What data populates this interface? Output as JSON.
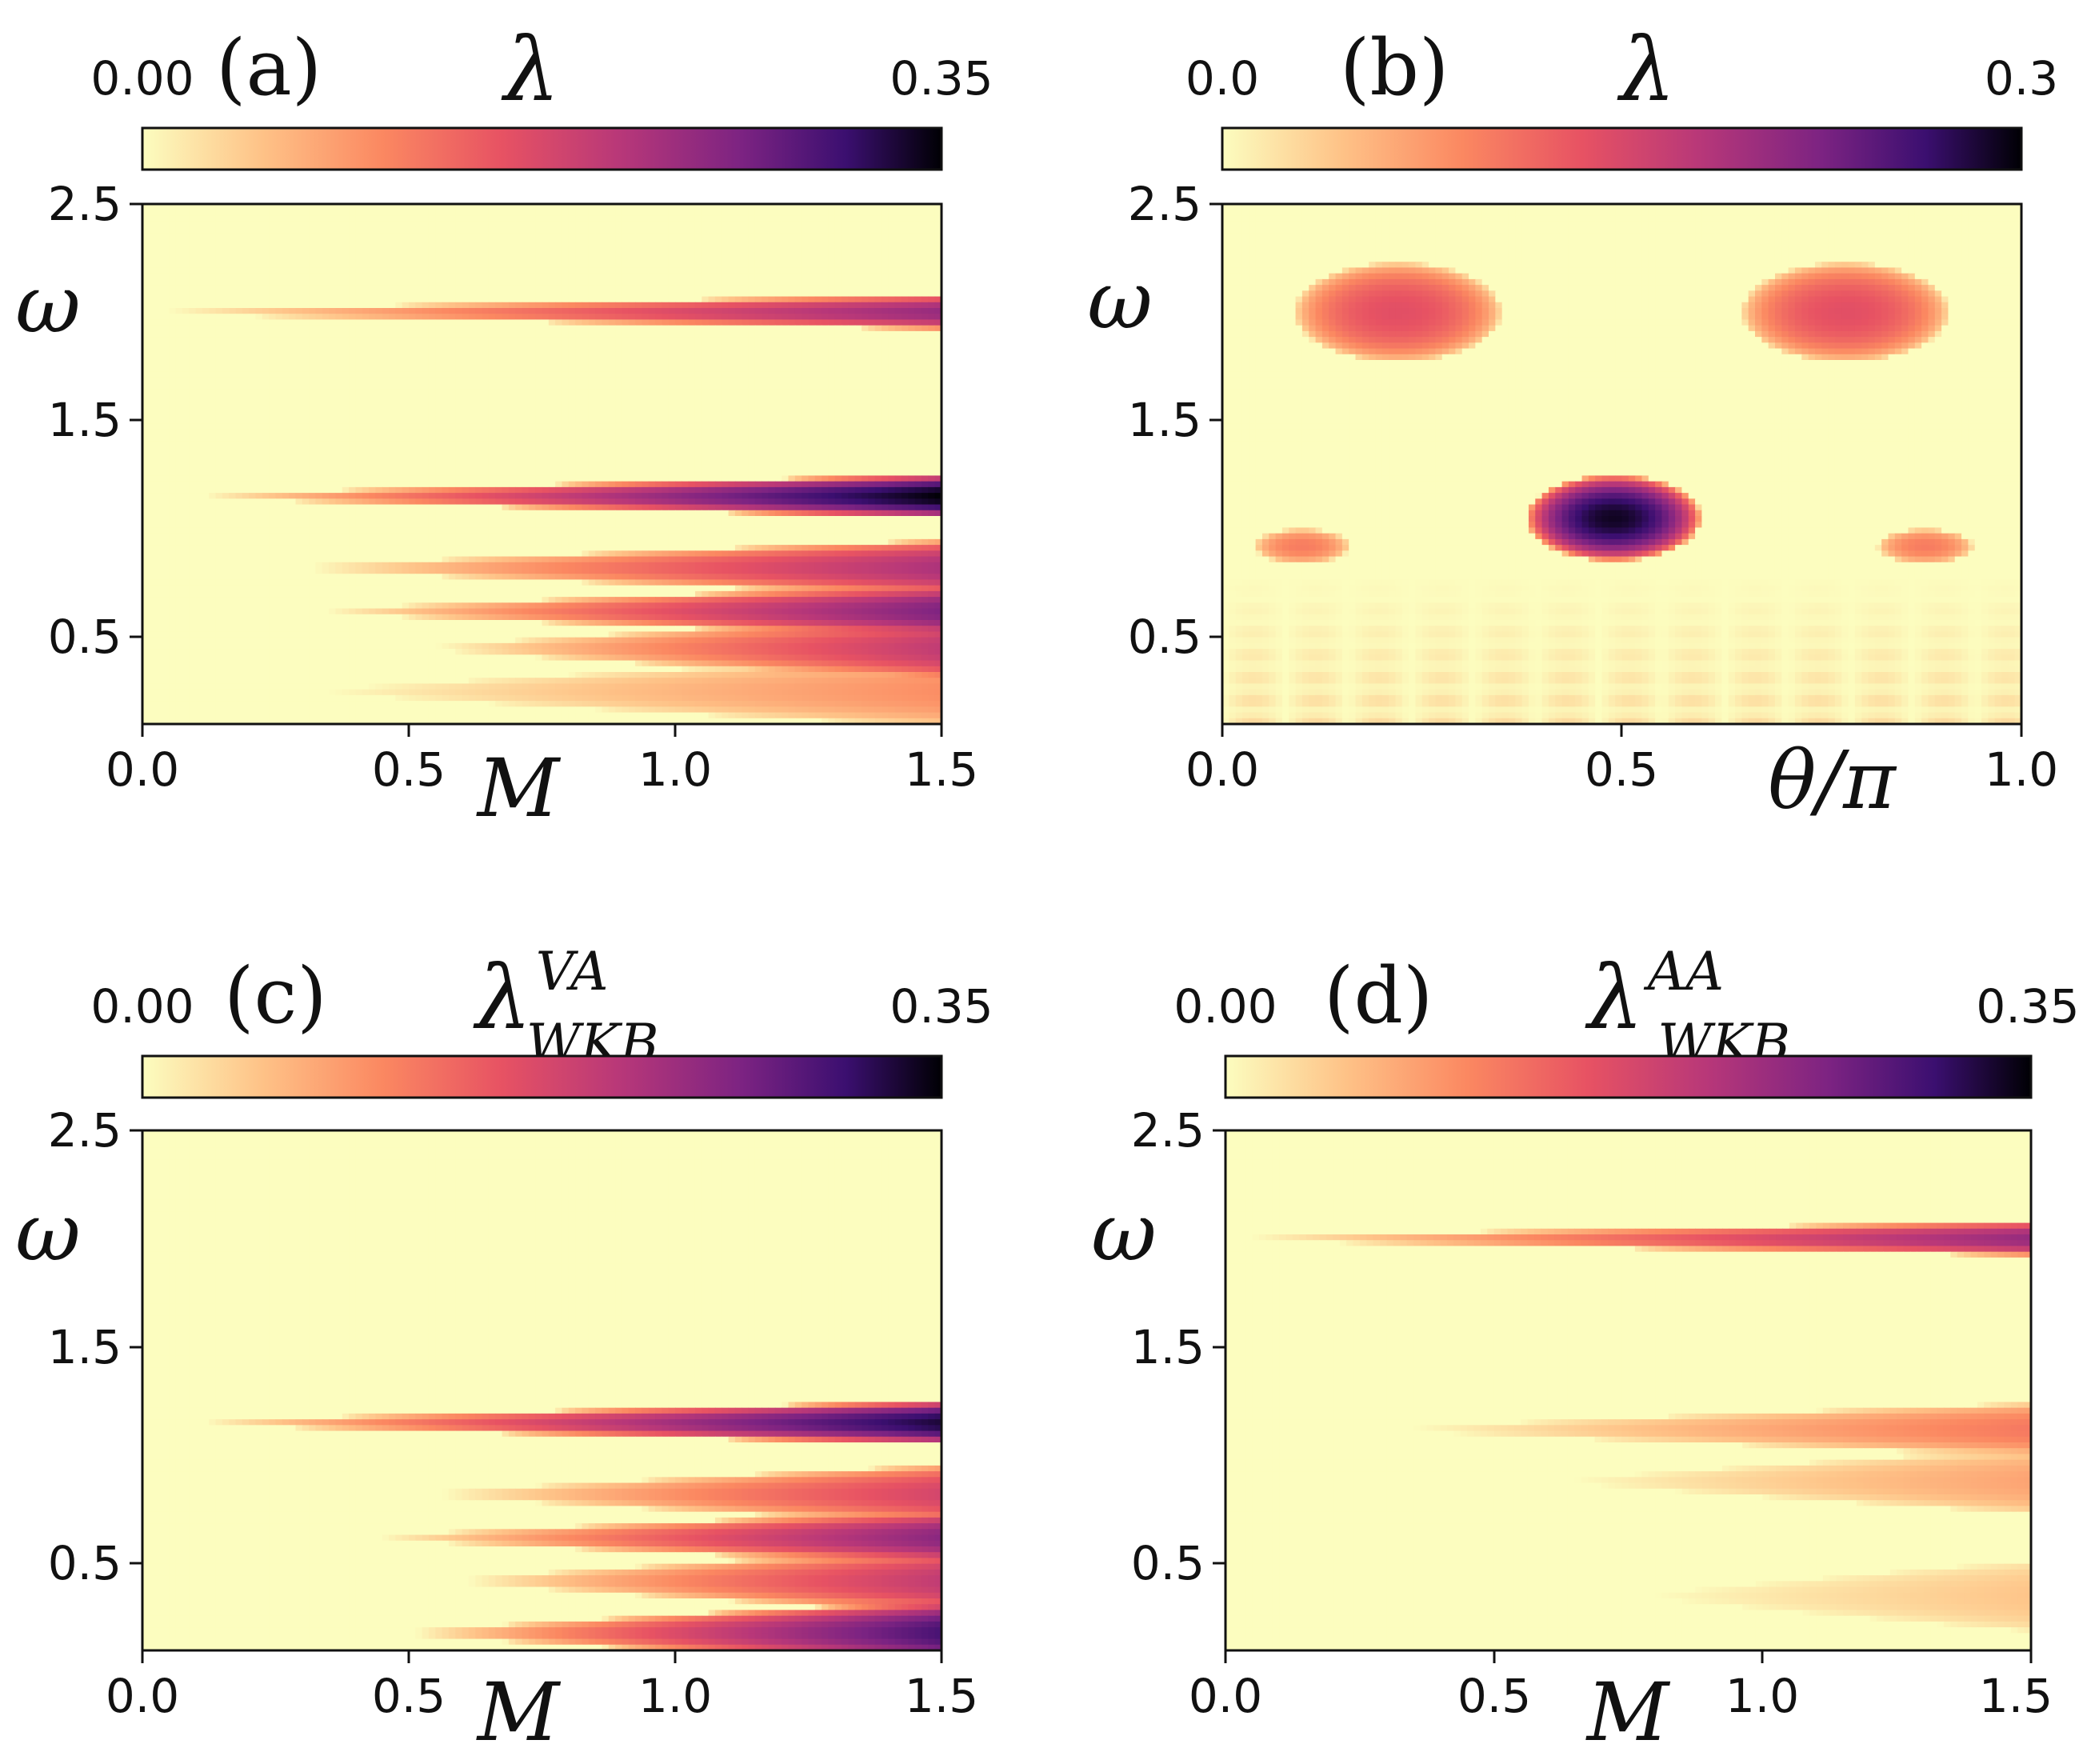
{
  "chart_data": [
    {
      "type": "heatmap",
      "panel_label": "(a)",
      "colorbar": {
        "label": "λ",
        "label_sup": "",
        "label_sub": "",
        "min_label": "0.00",
        "max_label": "0.35",
        "range": [
          0,
          0.35
        ]
      },
      "xlabel": "M",
      "ylabel": "ω",
      "xlim": [
        0,
        1.5
      ],
      "ylim": [
        0.1,
        2.5
      ],
      "xticks": [
        "0.0",
        "0.5",
        "1.0",
        "1.5"
      ],
      "yticks": [
        "2.5",
        "1.5",
        "0.5"
      ],
      "tongues": [
        {
          "center": 2.0,
          "start": 0.05,
          "peak": 0.24,
          "growth": 1.0
        },
        {
          "center": 1.15,
          "start": 0.12,
          "peak": 0.35,
          "growth": 1.3
        },
        {
          "center": 0.82,
          "start": 0.3,
          "peak": 0.22,
          "growth": 1.7
        },
        {
          "center": 0.62,
          "start": 0.35,
          "peak": 0.26,
          "growth": 1.6
        },
        {
          "center": 0.45,
          "start": 0.55,
          "peak": 0.2,
          "growth": 2.0
        },
        {
          "center": 0.25,
          "start": 0.35,
          "peak": 0.1,
          "growth": 2.2
        }
      ]
    },
    {
      "type": "heatmap",
      "panel_label": "(b)",
      "colorbar": {
        "label": "λ",
        "label_sup": "",
        "label_sub": "",
        "min_label": "0.0",
        "max_label": "0.3",
        "range": [
          0,
          0.3
        ]
      },
      "xlabel": "θ/π",
      "ylabel": "ω",
      "xlim": [
        0,
        1.0
      ],
      "ylim": [
        0.1,
        2.5
      ],
      "xticks": [
        "0.0",
        "0.5",
        "1.0"
      ],
      "yticks": [
        "2.5",
        "1.5",
        "0.5"
      ],
      "lobes": [
        {
          "x": 0.22,
          "y": 2.0,
          "peak": 0.14
        },
        {
          "x": 0.78,
          "y": 2.0,
          "peak": 0.14
        },
        {
          "x": 0.49,
          "y": 1.05,
          "peak": 0.29
        },
        {
          "x": 0.1,
          "y": 0.92,
          "peak": 0.1
        },
        {
          "x": 0.88,
          "y": 0.92,
          "peak": 0.1
        }
      ]
    },
    {
      "type": "heatmap",
      "panel_label": "(c)",
      "colorbar": {
        "label": "λ",
        "label_sup": "VA",
        "label_sub": "WKB",
        "min_label": "0.00",
        "max_label": "0.35",
        "range": [
          0,
          0.35
        ]
      },
      "xlabel": "M",
      "ylabel": "ω",
      "xlim": [
        0,
        1.5
      ],
      "ylim": [
        0.1,
        2.5
      ],
      "xticks": [
        "0.0",
        "0.5",
        "1.0",
        "1.5"
      ],
      "yticks": [
        "2.5",
        "1.5",
        "0.5"
      ],
      "tongues": [
        {
          "center": 1.15,
          "start": 0.12,
          "peak": 0.33,
          "growth": 1.3
        },
        {
          "center": 0.82,
          "start": 0.55,
          "peak": 0.18,
          "growth": 1.8
        },
        {
          "center": 0.62,
          "start": 0.45,
          "peak": 0.25,
          "growth": 1.6
        },
        {
          "center": 0.42,
          "start": 0.6,
          "peak": 0.2,
          "growth": 2.0
        },
        {
          "center": 0.18,
          "start": 0.5,
          "peak": 0.3,
          "growth": 2.0
        }
      ]
    },
    {
      "type": "heatmap",
      "panel_label": "(d)",
      "colorbar": {
        "label": "λ",
        "label_sup": "AA",
        "label_sub": "WKB",
        "min_label": "0.00",
        "max_label": "0.35",
        "range": [
          0,
          0.35
        ]
      },
      "xlabel": "M",
      "ylabel": "ω",
      "xlim": [
        0,
        1.5
      ],
      "ylim": [
        0.1,
        2.5
      ],
      "xticks": [
        "0.0",
        "0.5",
        "1.0",
        "1.5"
      ],
      "yticks": [
        "2.5",
        "1.5",
        "0.5"
      ],
      "tongues": [
        {
          "center": 2.0,
          "start": 0.05,
          "peak": 0.24,
          "growth": 1.0
        },
        {
          "center": 1.12,
          "start": 0.35,
          "peak": 0.12,
          "growth": 1.6
        },
        {
          "center": 0.88,
          "start": 0.65,
          "peak": 0.08,
          "growth": 2.0
        },
        {
          "center": 0.35,
          "start": 0.8,
          "peak": 0.05,
          "growth": 2.2
        }
      ]
    }
  ]
}
